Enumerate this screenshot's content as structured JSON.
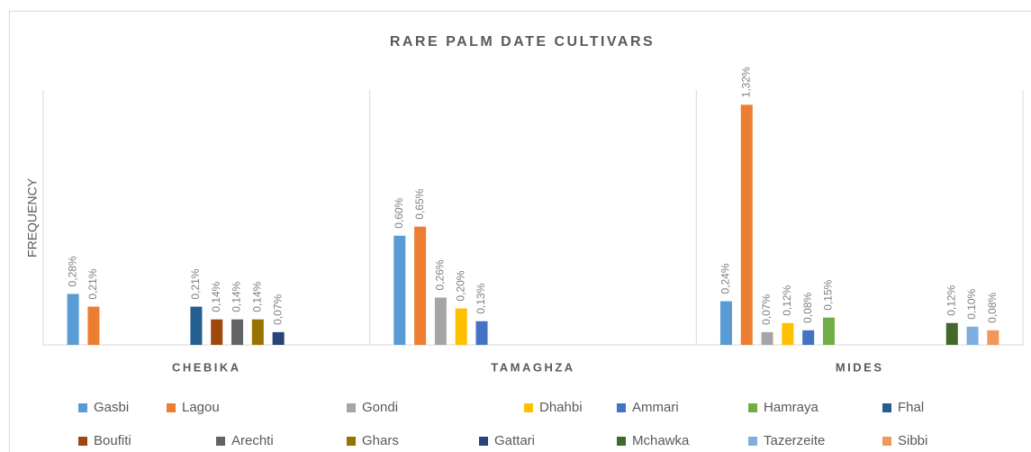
{
  "chart_data": {
    "type": "bar",
    "title": "RARE PALM DATE CULTIVARS",
    "y_label": "FREQUENCY",
    "categories": [
      "CHEBIKA",
      "TAMAGHZA",
      "MIDES"
    ],
    "series": [
      {
        "name": "Gasbi",
        "color": "#5b9bd5",
        "values": [
          0.28,
          0.6,
          0.24
        ],
        "value_labels": [
          "0,28%",
          "0,60%",
          "0,24%"
        ]
      },
      {
        "name": "Lagou",
        "color": "#ed7d31",
        "values": [
          0.21,
          0.65,
          1.32
        ],
        "value_labels": [
          "0,21%",
          "0,65%",
          "1,32%"
        ]
      },
      {
        "name": "Gondi",
        "color": "#a5a5a5",
        "values": [
          null,
          0.26,
          0.07
        ],
        "value_labels": [
          null,
          "0,26%",
          "0,07%"
        ]
      },
      {
        "name": "Dhahbi",
        "color": "#ffc000",
        "values": [
          null,
          0.2,
          0.12
        ],
        "value_labels": [
          null,
          "0,20%",
          "0,12%"
        ]
      },
      {
        "name": "Ammari",
        "color": "#4472c4",
        "values": [
          null,
          0.13,
          0.08
        ],
        "value_labels": [
          null,
          "0,13%",
          "0,08%"
        ]
      },
      {
        "name": "Hamraya",
        "color": "#70ad47",
        "values": [
          null,
          null,
          0.15
        ],
        "value_labels": [
          null,
          null,
          "0,15%"
        ]
      },
      {
        "name": "Fhal",
        "color": "#255e91",
        "values": [
          0.21,
          null,
          null
        ],
        "value_labels": [
          "0,21%",
          null,
          null
        ]
      },
      {
        "name": "Boufiti",
        "color": "#9e480e",
        "values": [
          0.14,
          null,
          null
        ],
        "value_labels": [
          "0,14%",
          null,
          null
        ]
      },
      {
        "name": "Arechti",
        "color": "#636363",
        "values": [
          0.14,
          null,
          null
        ],
        "value_labels": [
          "0,14%",
          null,
          null
        ]
      },
      {
        "name": "Ghars",
        "color": "#997300",
        "values": [
          0.14,
          null,
          null
        ],
        "value_labels": [
          "0,14%",
          null,
          null
        ]
      },
      {
        "name": "Gattari",
        "color": "#264478",
        "values": [
          0.07,
          null,
          null
        ],
        "value_labels": [
          "0,07%",
          null,
          null
        ]
      },
      {
        "name": "Mchawka",
        "color": "#43682b",
        "values": [
          null,
          null,
          0.12
        ],
        "value_labels": [
          null,
          null,
          "0,12%"
        ]
      },
      {
        "name": "Tazerzeite",
        "color": "#7cafdd",
        "values": [
          null,
          null,
          0.1
        ],
        "value_labels": [
          null,
          null,
          "0,10%"
        ]
      },
      {
        "name": "Sibbi",
        "color": "#f1975a",
        "values": [
          null,
          null,
          0.08
        ],
        "value_labels": [
          null,
          null,
          "0,08%"
        ]
      }
    ]
  }
}
